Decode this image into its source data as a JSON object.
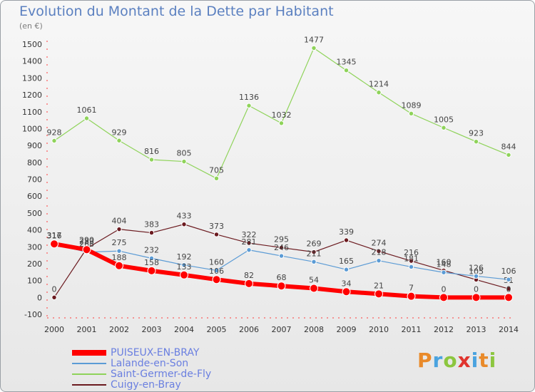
{
  "chart_data": {
    "type": "line",
    "title": "Evolution du Montant de la Dette par Habitant",
    "subtitle": "(en €)",
    "categories": [
      "2000",
      "2001",
      "2002",
      "2003",
      "2004",
      "2005",
      "2006",
      "2007",
      "2008",
      "2009",
      "2010",
      "2011",
      "2012",
      "2013",
      "2014"
    ],
    "ylim": [
      -100,
      1500
    ],
    "yticks": [
      -100,
      0,
      100,
      200,
      300,
      400,
      500,
      600,
      700,
      800,
      900,
      1000,
      1100,
      1200,
      1300,
      1400,
      1500
    ],
    "grid": false,
    "legend_position": "bottom-left",
    "series": [
      {
        "name": "Saint-Germer-de-Fly",
        "color": "#8fd35a",
        "values": [
          928,
          1061,
          929,
          816,
          805,
          705,
          1136,
          1032,
          1477,
          1345,
          1214,
          1089,
          1005,
          923,
          844
        ]
      },
      {
        "name": "Cuigy-en-Bray",
        "color": "#6b1a1f",
        "values": [
          0,
          290,
          404,
          383,
          433,
          373,
          322,
          295,
          269,
          339,
          274,
          216,
          160,
          105,
          51
        ]
      },
      {
        "name": "Lalande-en-Son",
        "color": "#5b9bd5",
        "values": [
          316,
          268,
          275,
          232,
          192,
          160,
          281,
          246,
          211,
          165,
          218,
          181,
          148,
          126,
          106
        ]
      },
      {
        "name": "PUISEUX-EN-BRAY",
        "color": "#ff0000",
        "values": [
          317,
          283,
          188,
          158,
          133,
          106,
          82,
          68,
          54,
          34,
          21,
          7,
          0,
          0,
          0
        ]
      }
    ],
    "legend_order": [
      "PUISEUX-EN-BRAY",
      "Lalande-en-Son",
      "Saint-Germer-de-Fly",
      "Cuigy-en-Bray"
    ]
  },
  "branding": {
    "logo_text": "Proxiti"
  }
}
